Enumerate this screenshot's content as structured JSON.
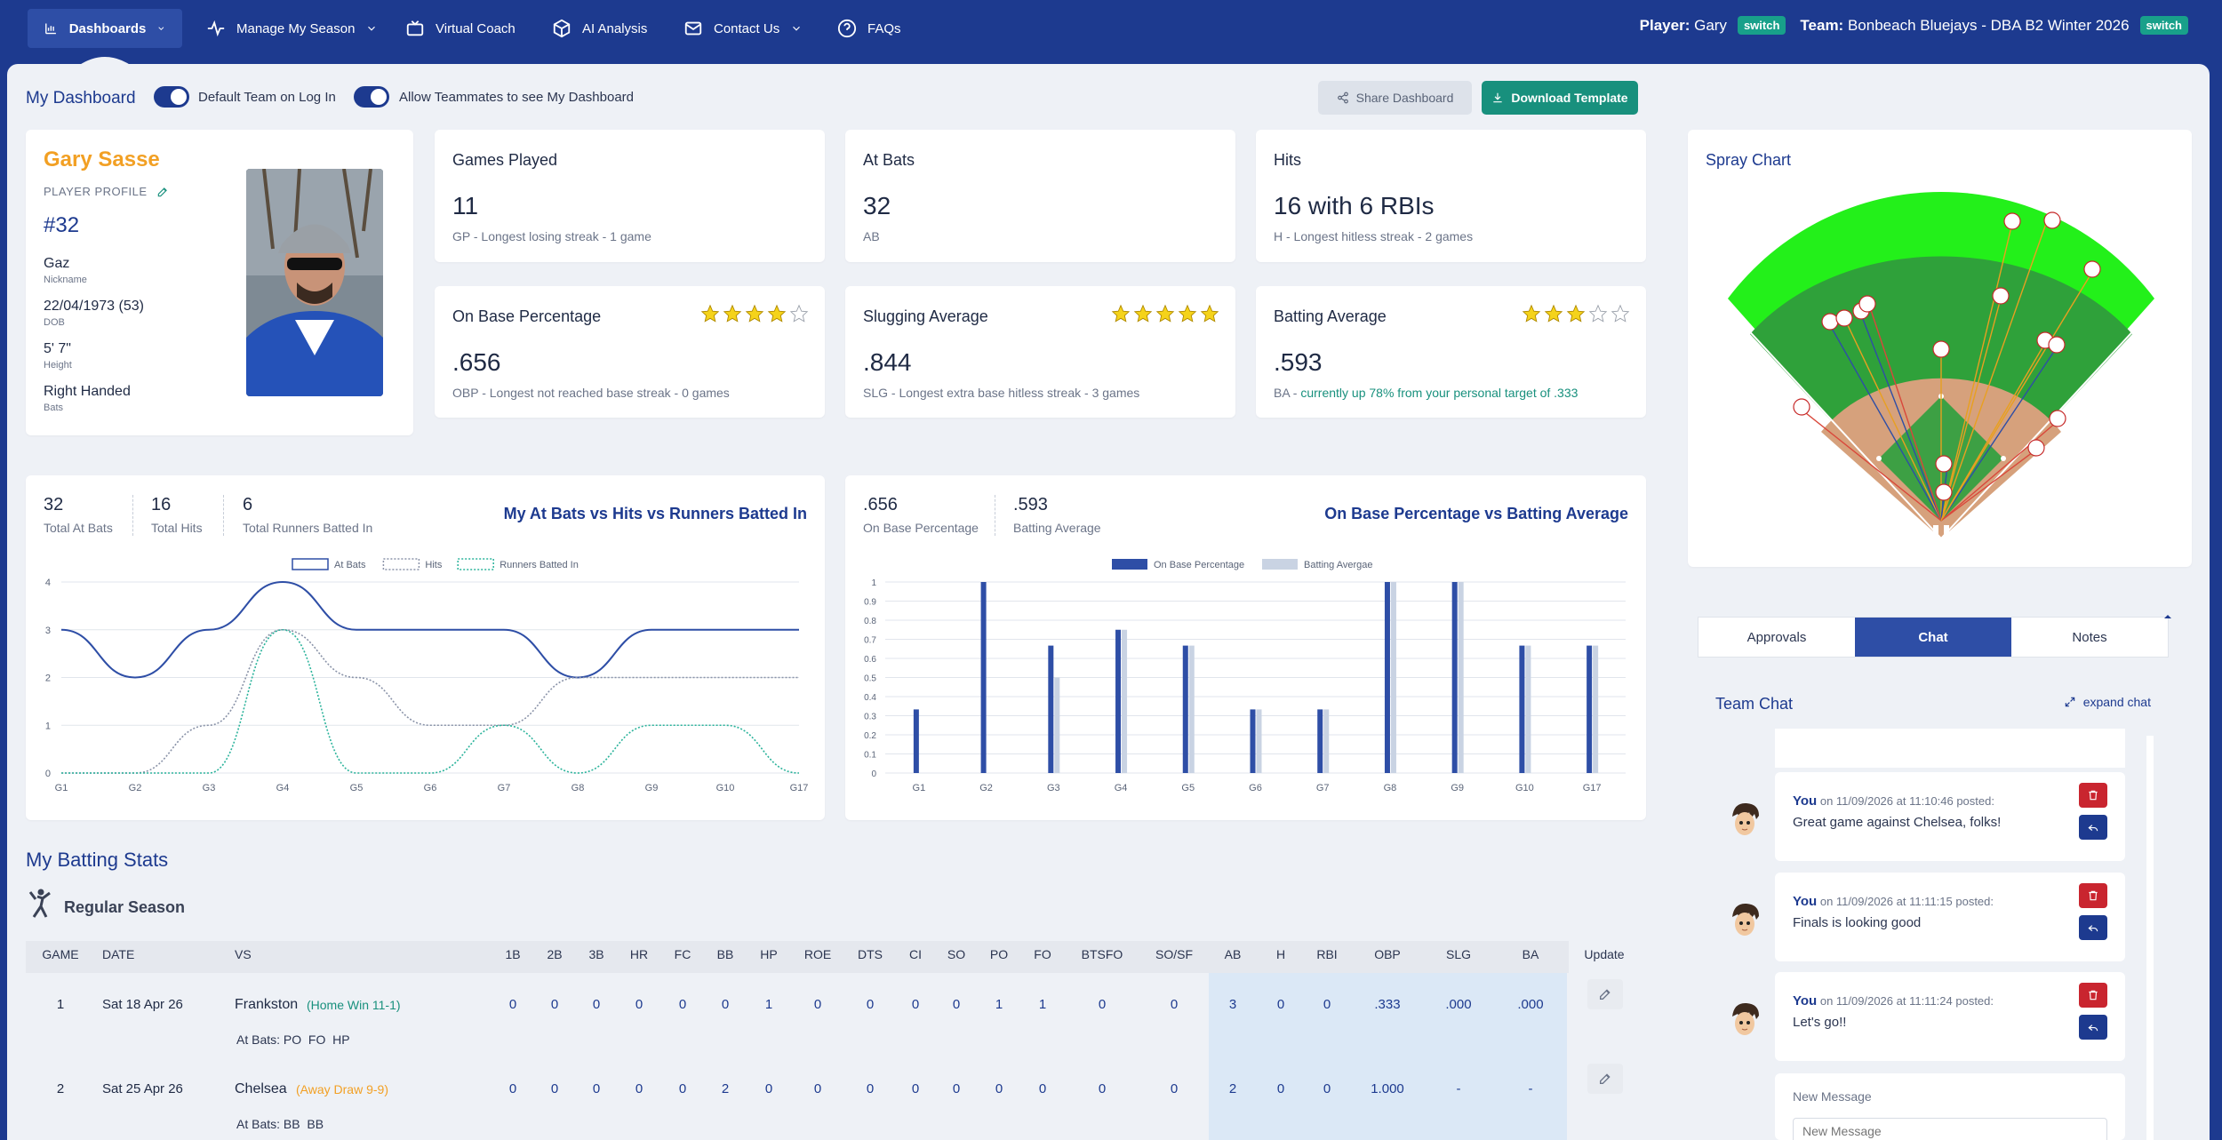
{
  "nav": {
    "items": [
      {
        "label": "Dashboards",
        "icon": "bar-chart-icon"
      },
      {
        "label": "Manage My Season",
        "icon": "pulse-icon"
      },
      {
        "label": "Virtual Coach",
        "icon": "tv-icon"
      },
      {
        "label": "AI Analysis",
        "icon": "cube-icon"
      },
      {
        "label": "Contact Us",
        "icon": "mail-icon"
      },
      {
        "label": "FAQs",
        "icon": "help-circle-icon"
      }
    ],
    "player_label": "Player:",
    "player_name": "Gary",
    "team_label": "Team:",
    "team_name": "Bonbeach Bluejays - DBA B2 Winter 2026",
    "switch_label": "switch"
  },
  "toolbar": {
    "title": "My Dashboard",
    "toggle1": "Default Team on Log In",
    "toggle2": "Allow Teammates to see My Dashboard",
    "share": "Share Dashboard",
    "download": "Download Template"
  },
  "profile": {
    "name": "Gary Sasse",
    "subtitle": "PLAYER PROFILE",
    "number": "#32",
    "nickname": "Gaz",
    "nickname_label": "Nickname",
    "dob": "22/04/1973 (53)",
    "dob_label": "DOB",
    "height": "5' 7\"",
    "height_label": "Height",
    "bats": "Right Handed",
    "bats_label": "Bats"
  },
  "stats": {
    "games": {
      "title": "Games Played",
      "value": "11",
      "sub": "GP - Longest losing streak - 1 game"
    },
    "atbats": {
      "title": "At Bats",
      "value": "32",
      "sub": "AB"
    },
    "hits": {
      "title": "Hits",
      "value": "16 with 6 RBIs",
      "sub": "H - Longest hitless streak - 2 games"
    },
    "obp": {
      "title": "On Base Percentage",
      "value": ".656",
      "sub": "OBP - Longest not reached base streak - 0 games",
      "stars": 4
    },
    "slg": {
      "title": "Slugging Average",
      "value": ".844",
      "sub": "SLG - Longest extra base hitless streak - 3 games",
      "stars": 5
    },
    "ba": {
      "title": "Batting Average",
      "value": ".593",
      "sub_prefix": "BA - ",
      "sub": "currently up 78% from your personal target of .333",
      "stars": 3
    }
  },
  "spray": {
    "title": "Spray Chart"
  },
  "chart_data": [
    {
      "type": "line",
      "title": "My At Bats vs Hits vs Runners Batted In",
      "kpis": [
        {
          "value": "32",
          "label": "Total At Bats"
        },
        {
          "value": "16",
          "label": "Total Hits"
        },
        {
          "value": "6",
          "label": "Total Runners Batted In"
        }
      ],
      "categories": [
        "G1",
        "G2",
        "G3",
        "G4",
        "G5",
        "G6",
        "G7",
        "G8",
        "G9",
        "G10",
        "G17"
      ],
      "ylim": [
        0,
        4
      ],
      "yticks": [
        "0",
        "1",
        "2",
        "3",
        "4"
      ],
      "series": [
        {
          "name": "At Bats",
          "color": "#2e4ea6",
          "values": [
            3,
            2,
            3,
            4,
            3,
            3,
            3,
            2,
            3,
            3,
            3
          ]
        },
        {
          "name": "Hits",
          "color": "#8a93a8",
          "values": [
            0,
            0,
            1,
            3,
            2,
            1,
            1,
            2,
            2,
            2,
            2
          ]
        },
        {
          "name": "Runners Batted In",
          "color": "#2bb39b",
          "values": [
            0,
            0,
            0,
            3,
            0,
            0,
            1,
            0,
            1,
            1,
            0
          ]
        }
      ]
    },
    {
      "type": "bar",
      "title": "On Base Percentage vs Batting Average",
      "kpis": [
        {
          "value": ".656",
          "label": "On Base Percentage"
        },
        {
          "value": ".593",
          "label": "Batting Average"
        }
      ],
      "categories": [
        "G1",
        "G2",
        "G3",
        "G4",
        "G5",
        "G6",
        "G7",
        "G8",
        "G9",
        "G10",
        "G17"
      ],
      "ylim": [
        0,
        1
      ],
      "yticks": [
        "0",
        "0.1",
        "0.2",
        "0.3",
        "0.4",
        "0.5",
        "0.6",
        "0.7",
        "0.8",
        "0.9",
        "1"
      ],
      "series": [
        {
          "name": "On Base Percentage",
          "color": "#2e4ea6",
          "values": [
            0.333,
            1,
            0.667,
            0.75,
            0.667,
            0.333,
            0.333,
            1,
            1,
            0.667,
            0.667
          ]
        },
        {
          "name": "Batting Avergae",
          "color": "#c9d3e3",
          "values": [
            0,
            0,
            0.5,
            0.75,
            0.667,
            0.333,
            0.333,
            1,
            1,
            0.667,
            0.667
          ]
        }
      ]
    }
  ],
  "batting": {
    "title": "My Batting Stats",
    "season": "Regular Season",
    "columns": [
      "GAME",
      "DATE",
      "VS",
      "1B",
      "2B",
      "3B",
      "HR",
      "FC",
      "BB",
      "HP",
      "ROE",
      "DTS",
      "CI",
      "SO",
      "PO",
      "FO",
      "BTSFO",
      "SO/SF",
      "AB",
      "H",
      "RBI",
      "OBP",
      "SLG",
      "BA",
      "Update"
    ],
    "rows": [
      {
        "game": "1",
        "date": "Sat 18 Apr 26",
        "vs": "Frankston",
        "result": "(Home Win 11-1)",
        "result_color": "#18907d",
        "cells": [
          "0",
          "0",
          "0",
          "0",
          "0",
          "0",
          "1",
          "0",
          "0",
          "0",
          "0",
          "1",
          "1",
          "0",
          "0",
          "3",
          "0",
          "0",
          ".333",
          ".000",
          ".000"
        ],
        "atbats_label": "At Bats:",
        "atbats": "PO  FO  HP"
      },
      {
        "game": "2",
        "date": "Sat 25 Apr 26",
        "vs": "Chelsea",
        "result": "(Away Draw 9-9)",
        "result_color": "#f2a024",
        "cells": [
          "0",
          "0",
          "0",
          "0",
          "0",
          "2",
          "0",
          "0",
          "0",
          "0",
          "0",
          "0",
          "0",
          "0",
          "0",
          "2",
          "0",
          "0",
          "1.000",
          "-",
          "-"
        ],
        "atbats_label": "At Bats:",
        "atbats": "BB  BB"
      }
    ]
  },
  "side": {
    "tabs": [
      "Approvals",
      "Chat",
      "Notes"
    ],
    "chat_title": "Team Chat",
    "expand": "expand chat",
    "messages": [
      {
        "who": "You",
        "meta": "on 11/09/2026 at 11:10:46 posted:",
        "text": "Great game against Chelsea, folks!"
      },
      {
        "who": "You",
        "meta": "on 11/09/2026 at 11:11:15 posted:",
        "text": "Finals is looking good"
      },
      {
        "who": "You",
        "meta": "on 11/09/2026 at 11:11:24 posted:",
        "text": "Let's go!!"
      }
    ],
    "new_label": "New Message",
    "new_placeholder": "New Message"
  }
}
